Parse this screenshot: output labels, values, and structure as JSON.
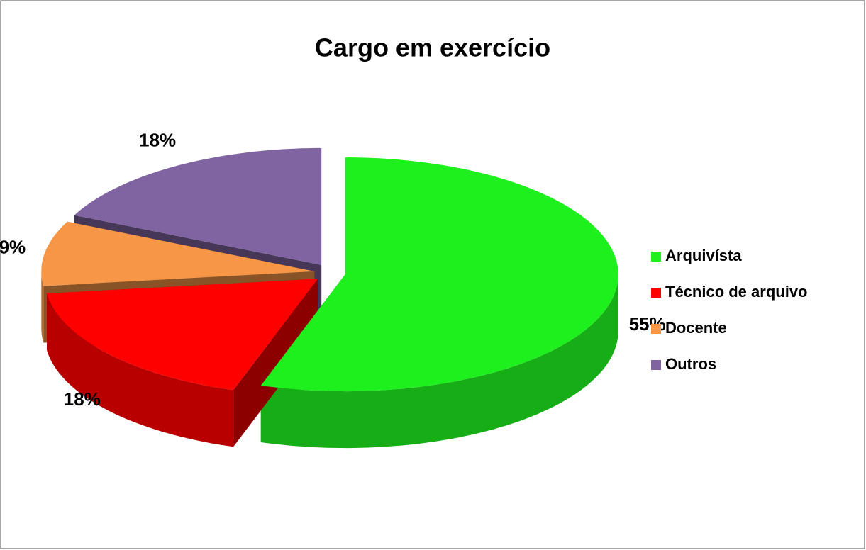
{
  "chart_data": {
    "type": "pie",
    "title": "Cargo em exercício",
    "categories": [
      "Arquivísta",
      "Técnico de arquivo",
      "Docente",
      "Outros"
    ],
    "values": [
      55,
      18,
      9,
      18
    ],
    "value_labels": [
      "55%",
      "18%",
      "9%",
      "18%"
    ],
    "colors": [
      "#1ef01e",
      "#ff0000",
      "#f79646",
      "#8064a2"
    ],
    "legend": "right"
  }
}
